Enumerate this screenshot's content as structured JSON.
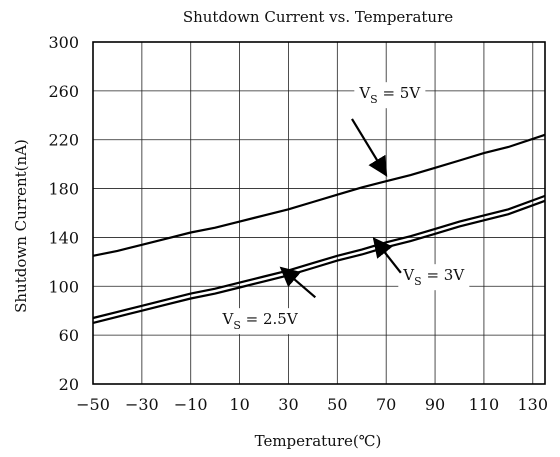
{
  "chart_data": {
    "type": "line",
    "title": "Shutdown Current vs. Temperature",
    "xlabel": "Temperature(℃)",
    "ylabel": "Shutdown Current(nA)",
    "xlim": [
      -50,
      135
    ],
    "ylim": [
      20,
      300
    ],
    "x_ticks": [
      -50,
      -30,
      -10,
      10,
      30,
      50,
      70,
      90,
      110,
      130
    ],
    "y_ticks": [
      20,
      60,
      100,
      140,
      180,
      220,
      260,
      300
    ],
    "grid": true,
    "series": [
      {
        "name": "V_S = 5V",
        "x": [
          -50,
          -40,
          -30,
          -20,
          -10,
          0,
          10,
          20,
          30,
          40,
          50,
          60,
          70,
          80,
          90,
          100,
          110,
          120,
          135
        ],
        "y": [
          125,
          129,
          134,
          139,
          144,
          148,
          153,
          158,
          163,
          169,
          175,
          181,
          186,
          191,
          197,
          203,
          209,
          214,
          224
        ]
      },
      {
        "name": "V_S = 3V",
        "x": [
          -50,
          -40,
          -30,
          -20,
          -10,
          0,
          10,
          20,
          30,
          40,
          50,
          60,
          70,
          80,
          90,
          100,
          110,
          120,
          135
        ],
        "y": [
          74,
          79,
          84,
          89,
          94,
          98,
          103,
          108,
          113,
          119,
          125,
          130,
          136,
          141,
          147,
          153,
          158,
          163,
          174
        ]
      },
      {
        "name": "V_S = 2.5V",
        "x": [
          -50,
          -40,
          -30,
          -20,
          -10,
          0,
          10,
          20,
          30,
          40,
          50,
          60,
          70,
          80,
          90,
          100,
          110,
          120,
          135
        ],
        "y": [
          70,
          75,
          80,
          85,
          90,
          94,
          99,
          104,
          109,
          115,
          121,
          126,
          132,
          137,
          143,
          149,
          154,
          159,
          170
        ]
      }
    ],
    "annotations": [
      {
        "series": 0,
        "main": "V",
        "sub": "S",
        "rest": " = 5V",
        "label_at": [
          59,
          254
        ],
        "arrow_from": [
          56,
          237
        ],
        "arrow_to": [
          70,
          191
        ]
      },
      {
        "series": 1,
        "main": "V",
        "sub": "S",
        "rest": " = 3V",
        "label_at": [
          77,
          105
        ],
        "arrow_from": [
          76,
          111
        ],
        "arrow_to": [
          65,
          139
        ]
      },
      {
        "series": 2,
        "main": "V",
        "sub": "S",
        "rest": " = 2.5V",
        "label_at": [
          3,
          69
        ],
        "arrow_from": [
          41,
          91
        ],
        "arrow_to": [
          27,
          115
        ]
      }
    ]
  }
}
